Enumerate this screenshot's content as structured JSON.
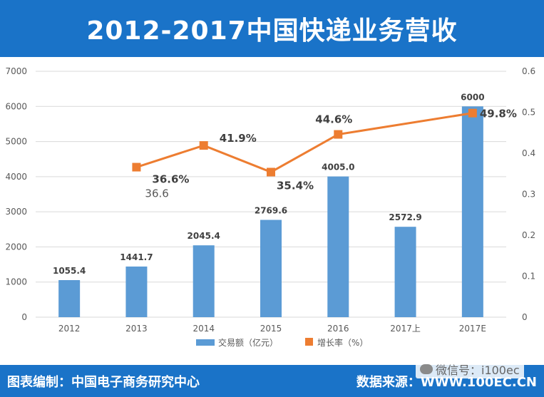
{
  "title": "2012-2017中国快递业务营收",
  "footer": {
    "left": "图表编制：中国电子商务研究中心",
    "right": "数据来源：WWW.100EC.CN",
    "watermark": "微信号：i100ec"
  },
  "chart_data": {
    "type": "bar+line",
    "categories": [
      "2012",
      "2013",
      "2014",
      "2015",
      "2016",
      "2017上",
      "2017E"
    ],
    "bar_series": {
      "name": "交易额（亿元）",
      "values": [
        1055.4,
        1441.7,
        2045.4,
        2769.6,
        4005.0,
        2572.9,
        6000
      ],
      "labels": [
        "1055.4",
        "1441.7",
        "2045.4",
        "2769.6",
        "4005.0",
        "2572.9",
        "6000"
      ],
      "color": "#5b9bd5"
    },
    "line_series": {
      "name": "增长率（%）",
      "points": [
        {
          "category": "2013",
          "value": 0.366,
          "label": "36.6%"
        },
        {
          "category": "2014",
          "value": 0.419,
          "label": "41.9%"
        },
        {
          "category": "2015",
          "value": 0.354,
          "label": "35.4%"
        },
        {
          "category": "2016",
          "value": 0.446,
          "label": "44.6%"
        },
        {
          "category": "2017E",
          "value": 0.498,
          "label": "49.8%"
        }
      ],
      "color": "#ed7d31"
    },
    "extra_annotation": "36.6",
    "left_axis": {
      "min": 0,
      "max": 7000,
      "ticks": [
        "0",
        "1000",
        "2000",
        "3000",
        "4000",
        "5000",
        "6000",
        "7000"
      ]
    },
    "right_axis": {
      "min": 0,
      "max": 0.6,
      "ticks": [
        "0",
        "0.1",
        "0.2",
        "0.3",
        "0.4",
        "0.5",
        "0.6"
      ]
    },
    "grid": true,
    "legend_position": "bottom"
  }
}
